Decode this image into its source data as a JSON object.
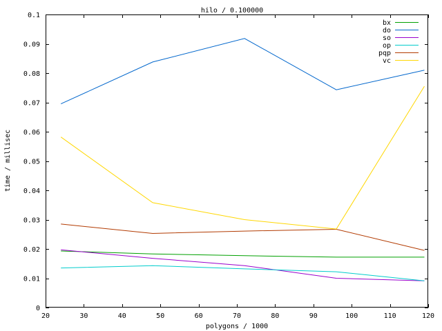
{
  "chart_data": {
    "type": "line",
    "title": "hilo / 0.100000",
    "xlabel": "polygons / 1000",
    "ylabel": "time / millisec",
    "xlim": [
      20,
      120
    ],
    "ylim": [
      0,
      0.1
    ],
    "xticks": [
      "20",
      "30",
      "40",
      "50",
      "60",
      "70",
      "80",
      "90",
      "100",
      "110",
      "120"
    ],
    "yticks": [
      "0",
      "0.01",
      "0.02",
      "0.03",
      "0.04",
      "0.05",
      "0.06",
      "0.07",
      "0.08",
      "0.09",
      "0.1"
    ],
    "grid": false,
    "legend_position": "top-right",
    "x": [
      24,
      48,
      72,
      96,
      119
    ],
    "series": [
      {
        "name": "bx",
        "color": "#00a000",
        "values": [
          0.0193,
          0.0183,
          0.0177,
          0.0172,
          0.0172
        ]
      },
      {
        "name": "do",
        "color": "#0066cc",
        "values": [
          0.0695,
          0.0838,
          0.0918,
          0.0743,
          0.081
        ]
      },
      {
        "name": "so",
        "color": "#9900cc",
        "values": [
          0.0197,
          0.0168,
          0.0143,
          0.01,
          0.0091
        ]
      },
      {
        "name": "op",
        "color": "#00cccc",
        "values": [
          0.0135,
          0.0143,
          0.0132,
          0.0122,
          0.0091
        ]
      },
      {
        "name": "pqp",
        "color": "#b23a00",
        "values": [
          0.0285,
          0.0253,
          0.0261,
          0.0267,
          0.0195
        ]
      },
      {
        "name": "vc",
        "color": "#ffd700",
        "values": [
          0.0582,
          0.0358,
          0.03,
          0.0268,
          0.0755
        ]
      }
    ]
  }
}
